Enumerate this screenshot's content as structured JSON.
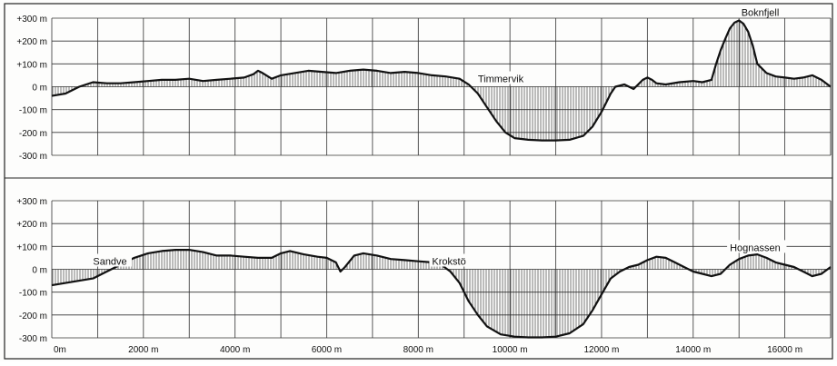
{
  "chart_data": [
    {
      "type": "area",
      "y_ticks": [
        "+300 m",
        "+200 m",
        "+100 m",
        "0 m",
        "-100 m",
        "-200 m",
        "-300 m"
      ],
      "ylim": [
        -300,
        300
      ],
      "xlim": [
        0,
        17000
      ],
      "grid": true,
      "annotations": [
        {
          "text": "Timmervik",
          "x": 9300,
          "y": 0
        },
        {
          "text": "Boknfjell",
          "x": 15050,
          "y": 290
        }
      ],
      "series": [
        {
          "x": [
            0,
            300,
            600,
            900,
            1200,
            1500,
            1800,
            2100,
            2400,
            2700,
            3000,
            3300,
            3600,
            3900,
            4200,
            4400,
            4500,
            4600,
            4800,
            5000,
            5300,
            5600,
            5900,
            6200,
            6500,
            6800,
            7100,
            7400,
            7700,
            8000,
            8300,
            8600,
            8900,
            9100,
            9300,
            9500,
            9700,
            9900,
            10100,
            10400,
            10700,
            11000,
            11300,
            11600,
            11800,
            12000,
            12100,
            12200,
            12300,
            12500,
            12700,
            12900,
            13000,
            13100,
            13200,
            13400,
            13700,
            14000,
            14200,
            14400,
            14500,
            14600,
            14700,
            14800,
            14900,
            15000,
            15100,
            15200,
            15300,
            15400,
            15600,
            15800,
            16000,
            16200,
            16400,
            16600,
            16800,
            17000
          ],
          "y": [
            -40,
            -30,
            0,
            20,
            15,
            15,
            20,
            25,
            30,
            30,
            35,
            25,
            30,
            35,
            40,
            55,
            70,
            60,
            35,
            50,
            60,
            70,
            65,
            60,
            70,
            75,
            70,
            60,
            65,
            60,
            50,
            45,
            35,
            10,
            -30,
            -90,
            -150,
            -200,
            -225,
            -232,
            -235,
            -235,
            -232,
            -215,
            -175,
            -110,
            -70,
            -30,
            0,
            10,
            -10,
            30,
            40,
            30,
            15,
            10,
            20,
            25,
            20,
            30,
            100,
            160,
            210,
            255,
            280,
            290,
            275,
            240,
            180,
            100,
            60,
            45,
            40,
            35,
            40,
            50,
            30,
            0
          ]
        }
      ]
    },
    {
      "type": "area",
      "y_ticks": [
        "+300 m",
        "+200 m",
        "+100 m",
        "0 m",
        "-100 m",
        "-200 m",
        "-300 m"
      ],
      "x_ticks": [
        "0m",
        "2000 m",
        "4000 m",
        "6000 m",
        "8000 m",
        "10000 m",
        "12000 m",
        "14000 m",
        "16000 m"
      ],
      "ylim": [
        -300,
        300
      ],
      "xlim": [
        0,
        17000
      ],
      "grid": true,
      "annotations": [
        {
          "text": "Sandve",
          "x": 900,
          "y": 0
        },
        {
          "text": "Krokstö",
          "x": 8300,
          "y": 0
        },
        {
          "text": "Hognassen",
          "x": 14800,
          "y": 60
        }
      ],
      "series": [
        {
          "x": [
            0,
            300,
            600,
            900,
            1100,
            1300,
            1500,
            1800,
            2100,
            2400,
            2700,
            3000,
            3300,
            3600,
            3900,
            4200,
            4500,
            4800,
            5000,
            5200,
            5500,
            5800,
            6000,
            6200,
            6300,
            6400,
            6600,
            6800,
            7100,
            7400,
            7700,
            8000,
            8300,
            8500,
            8700,
            8900,
            9100,
            9300,
            9500,
            9800,
            10100,
            10400,
            10700,
            11000,
            11300,
            11600,
            11800,
            12000,
            12200,
            12400,
            12600,
            12800,
            13000,
            13200,
            13400,
            13600,
            13800,
            14000,
            14200,
            14400,
            14600,
            14800,
            15000,
            15200,
            15400,
            15600,
            15800,
            16000,
            16200,
            16400,
            16600,
            16800,
            17000
          ],
          "y": [
            -70,
            -60,
            -50,
            -40,
            -20,
            0,
            20,
            50,
            70,
            80,
            85,
            85,
            75,
            60,
            60,
            55,
            50,
            50,
            70,
            80,
            65,
            55,
            50,
            30,
            -10,
            10,
            60,
            70,
            60,
            45,
            40,
            35,
            30,
            20,
            -10,
            -60,
            -140,
            -200,
            -250,
            -285,
            -295,
            -298,
            -298,
            -295,
            -280,
            -240,
            -180,
            -110,
            -40,
            -10,
            10,
            20,
            40,
            55,
            50,
            30,
            10,
            -10,
            -20,
            -30,
            -20,
            20,
            45,
            60,
            65,
            50,
            30,
            20,
            10,
            -10,
            -30,
            -20,
            10
          ]
        }
      ]
    }
  ]
}
